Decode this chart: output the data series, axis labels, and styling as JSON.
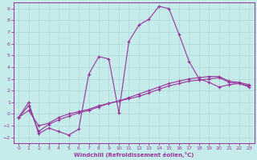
{
  "xlabel": "Windchill (Refroidissement éolien,°C)",
  "xlim": [
    -0.5,
    23.5
  ],
  "ylim": [
    -2.5,
    9.5
  ],
  "xticks": [
    0,
    1,
    2,
    3,
    4,
    5,
    6,
    7,
    8,
    9,
    10,
    11,
    12,
    13,
    14,
    15,
    16,
    17,
    18,
    19,
    20,
    21,
    22,
    23
  ],
  "yticks": [
    -2,
    -1,
    0,
    1,
    2,
    3,
    4,
    5,
    6,
    7,
    8,
    9
  ],
  "bg_color": "#c6ebeb",
  "line_color": "#993399",
  "grid_color": "#b0d8d8",
  "curve1_x": [
    0,
    1,
    2,
    3,
    4,
    5,
    6,
    7,
    8,
    9,
    10,
    11,
    12,
    13,
    14,
    15,
    16,
    17,
    18,
    19,
    20,
    21,
    22,
    23
  ],
  "curve1_y": [
    -0.3,
    1.0,
    -1.7,
    -1.2,
    -1.5,
    -1.8,
    -1.3,
    3.4,
    4.9,
    4.7,
    0.1,
    6.2,
    7.6,
    8.1,
    9.2,
    9.0,
    6.8,
    4.5,
    3.0,
    2.7,
    2.3,
    2.5,
    2.6,
    2.3
  ],
  "curve2_x": [
    0,
    1,
    2,
    3,
    4,
    5,
    6,
    7,
    8,
    9,
    10,
    11,
    12,
    13,
    14,
    15,
    16,
    17,
    18,
    19,
    20,
    21,
    22,
    23
  ],
  "curve2_y": [
    -0.3,
    0.7,
    -1.5,
    -0.9,
    -0.5,
    -0.2,
    0.1,
    0.3,
    0.6,
    0.9,
    1.1,
    1.4,
    1.7,
    2.0,
    2.3,
    2.6,
    2.8,
    3.0,
    3.1,
    3.2,
    3.2,
    2.8,
    2.7,
    2.5
  ],
  "curve3_x": [
    0,
    1,
    2,
    3,
    4,
    5,
    6,
    7,
    8,
    9,
    10,
    11,
    12,
    13,
    14,
    15,
    16,
    17,
    18,
    19,
    20,
    21,
    22,
    23
  ],
  "curve3_y": [
    -0.3,
    0.3,
    -1.0,
    -0.8,
    -0.3,
    0.0,
    0.2,
    0.4,
    0.7,
    0.9,
    1.1,
    1.3,
    1.5,
    1.8,
    2.1,
    2.4,
    2.6,
    2.8,
    2.9,
    3.0,
    3.1,
    2.7,
    2.6,
    2.4
  ]
}
